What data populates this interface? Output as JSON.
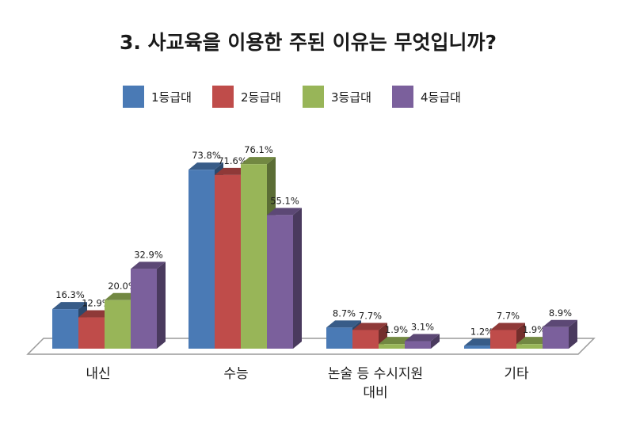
{
  "chart_data": {
    "type": "bar",
    "title": "3. 사교육을 이용한 주된 이유는 무엇입니까?",
    "categories": [
      [
        "내신"
      ],
      [
        "수능"
      ],
      [
        "논술 등 수시지원",
        "대비"
      ],
      [
        "기타"
      ]
    ],
    "series": [
      {
        "name": "1등급대",
        "color": "#4a7ab5",
        "values": [
          16.3,
          73.8,
          8.7,
          1.2
        ],
        "labels": [
          "16.3%",
          "73.8%",
          "8.7%",
          "1.2%"
        ]
      },
      {
        "name": "2등급대",
        "color": "#bf4c4a",
        "values": [
          12.9,
          71.6,
          7.7,
          7.7
        ],
        "labels": [
          "12.9%",
          "71.6%",
          "7.7%",
          "7.7%"
        ]
      },
      {
        "name": "3등급대",
        "color": "#98b558",
        "values": [
          20.0,
          76.1,
          1.9,
          1.9
        ],
        "labels": [
          "20.0%",
          "76.1%",
          "1.9%",
          "1.9%"
        ]
      },
      {
        "name": "4등급대",
        "color": "#7b609c",
        "values": [
          32.9,
          55.1,
          3.1,
          8.9
        ],
        "labels": [
          "32.9%",
          "55.1%",
          "3.1%",
          "8.9%"
        ]
      }
    ],
    "legend": "top",
    "grid": false,
    "ylim": [
      0,
      80
    ]
  }
}
